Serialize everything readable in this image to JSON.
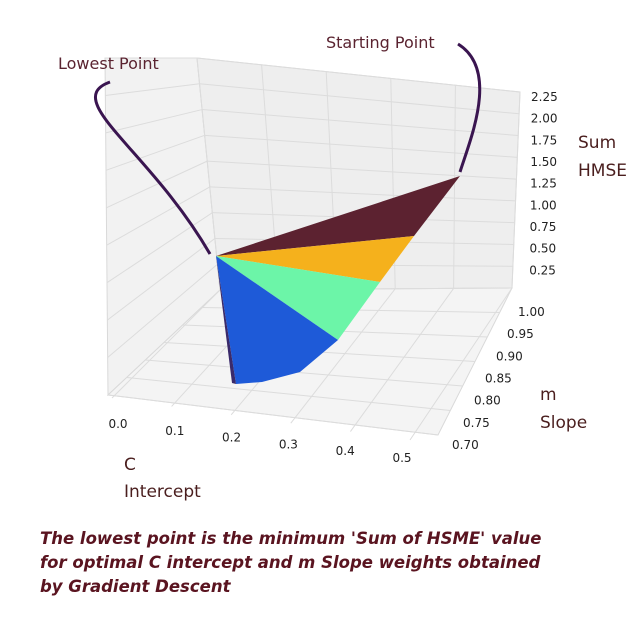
{
  "chart_data": {
    "type": "surface3d",
    "title": "",
    "x_axis": {
      "label_line1": "C",
      "label_line2": "Intercept",
      "ticks": [
        "0.0",
        "0.1",
        "0.2",
        "0.3",
        "0.4",
        "0.5"
      ],
      "range": [
        0.0,
        0.5
      ]
    },
    "y_axis": {
      "label_line1": "m",
      "label_line2": "Slope",
      "ticks": [
        "0.70",
        "0.75",
        "0.80",
        "0.85",
        "0.90",
        "0.95",
        "1.00"
      ],
      "range": [
        0.7,
        1.0
      ]
    },
    "z_axis": {
      "label_line1": "Sum",
      "label_line2": "HMSE",
      "ticks": [
        "0.25",
        "0.50",
        "0.75",
        "1.00",
        "1.25",
        "1.50",
        "1.75",
        "2.00",
        "2.25"
      ],
      "range": [
        0.0,
        2.25
      ]
    },
    "grid": true,
    "annotations": [
      {
        "text": "Lowest Point",
        "target": "minimum of surface"
      },
      {
        "text": "Starting Point",
        "target": "gradient descent start"
      }
    ],
    "bands": [
      {
        "name": "",
        "color": "#5c2230"
      },
      {
        "name": "",
        "color": "#f5b11c"
      },
      {
        "name": "",
        "color": "#6cf5a8"
      },
      {
        "name": "",
        "color": "#1e5ad8"
      }
    ]
  },
  "caption": {
    "line1": "The lowest point is the minimum 'Sum of HSME' value",
    "line2": "for optimal C intercept and m Slope weights obtained",
    "line3": "by Gradient Descent"
  }
}
